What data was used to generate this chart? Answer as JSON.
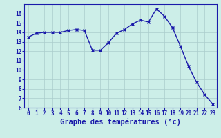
{
  "hours": [
    0,
    1,
    2,
    3,
    4,
    5,
    6,
    7,
    8,
    9,
    10,
    11,
    12,
    13,
    14,
    15,
    16,
    17,
    18,
    19,
    20,
    21,
    22,
    23
  ],
  "temperatures": [
    13.5,
    13.9,
    14.0,
    14.0,
    14.0,
    14.2,
    14.3,
    14.2,
    12.1,
    12.1,
    12.9,
    13.9,
    14.3,
    14.9,
    15.3,
    15.1,
    16.5,
    15.7,
    14.5,
    12.5,
    10.4,
    8.7,
    7.4,
    6.4
  ],
  "line_color": "#1a1aaa",
  "marker": "x",
  "marker_size": 3,
  "bg_color": "#cceee8",
  "grid_color": "#aacccc",
  "xlabel": "Graphe des températures (°c)",
  "xlabel_color": "#1a1aaa",
  "ylim": [
    6,
    17
  ],
  "yticks": [
    6,
    7,
    8,
    9,
    10,
    11,
    12,
    13,
    14,
    15,
    16
  ],
  "xlim": [
    -0.5,
    23.5
  ],
  "xticks": [
    0,
    1,
    2,
    3,
    4,
    5,
    6,
    7,
    8,
    9,
    10,
    11,
    12,
    13,
    14,
    15,
    16,
    17,
    18,
    19,
    20,
    21,
    22,
    23
  ],
  "tick_label_color": "#1a1aaa",
  "tick_fontsize": 5.5,
  "xlabel_fontsize": 7.5,
  "linewidth": 1.0
}
